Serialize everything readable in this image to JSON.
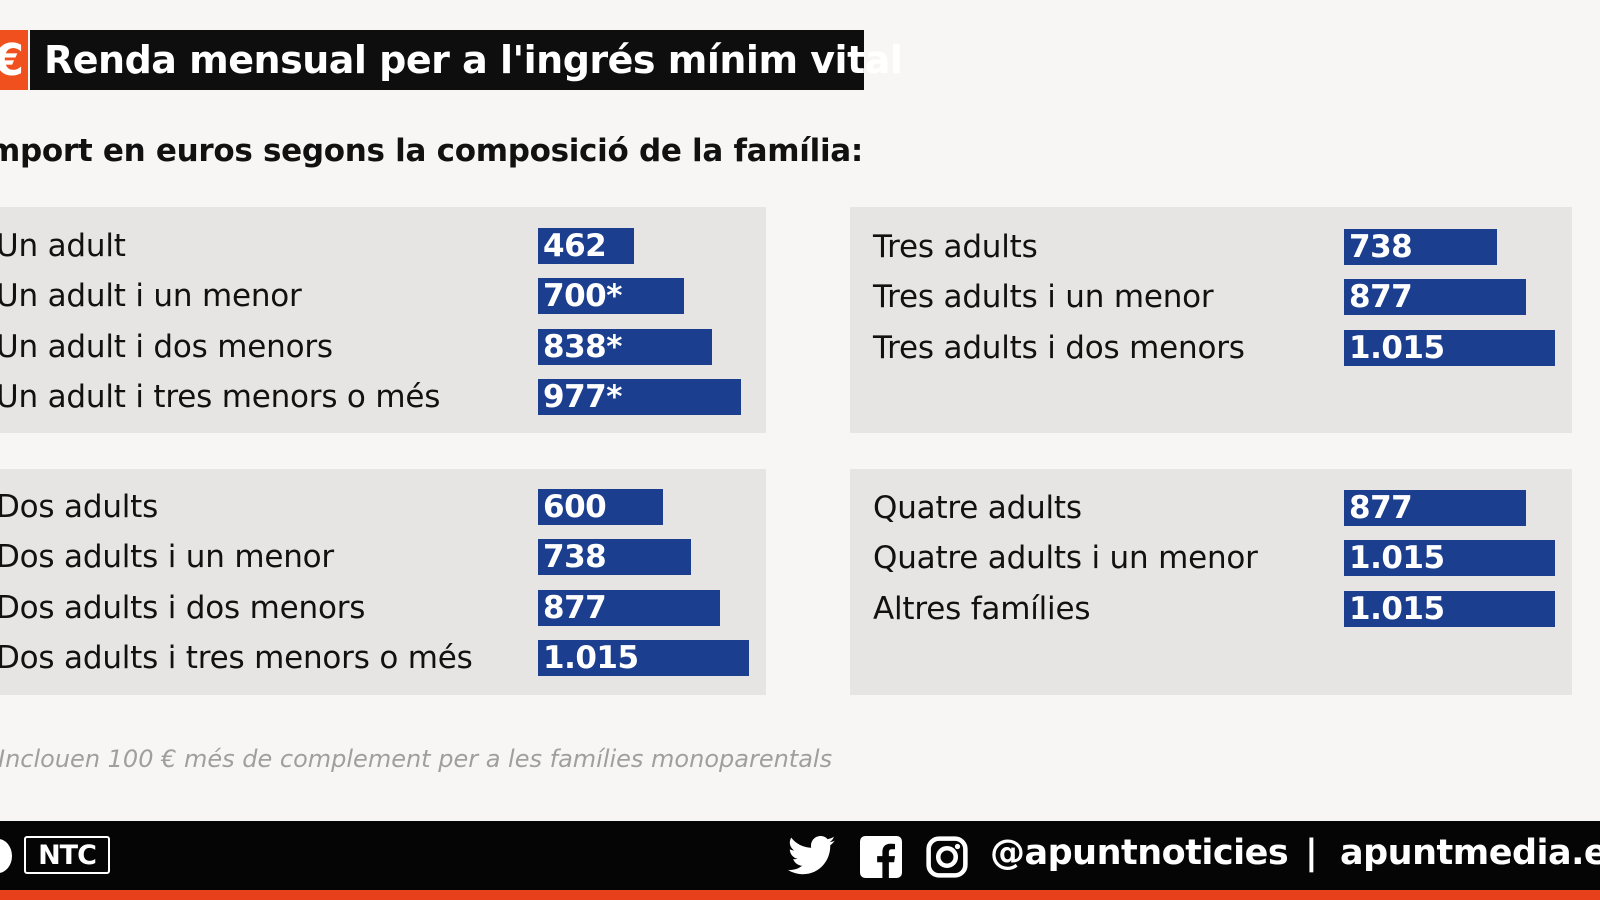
{
  "header": {
    "title": "Renda mensual per a l'ingrés mínim vital",
    "icon": "euro-icon",
    "subtitle": "mport en euros segons la composició de la família:"
  },
  "colors": {
    "bar": "#1c3e8f",
    "panel": "#e6e5e4",
    "accent": "#f0501e",
    "background": "#f8f6f4"
  },
  "chart_data": {
    "type": "bar",
    "orientation": "horizontal",
    "title": "Renda mensual per a l'ingrés mínim vital",
    "subtitle": "mport en euros segons la composició de la família:",
    "xlim": [
      0,
      1015
    ],
    "groups": [
      {
        "categories": [
          "Un adult",
          "Un adult i un menor",
          "Un adult i dos menors",
          "Un adult i tres menors o més"
        ],
        "values": [
          462,
          700,
          838,
          977
        ],
        "labels": [
          "462",
          "700*",
          "838*",
          "977*"
        ]
      },
      {
        "categories": [
          "Tres adults",
          "Tres adults i un menor",
          "Tres adults i dos menors"
        ],
        "values": [
          738,
          877,
          1015
        ],
        "labels": [
          "738",
          "877",
          "1.015"
        ]
      },
      {
        "categories": [
          "Dos adults",
          "Dos adults i un menor",
          "Dos adults i dos menors",
          "Dos adults i tres menors o més"
        ],
        "values": [
          600,
          738,
          877,
          1015
        ],
        "labels": [
          "600",
          "738",
          "877",
          "1.015"
        ]
      },
      {
        "categories": [
          "Quatre adults",
          "Quatre adults i un menor",
          "Altres famílies"
        ],
        "values": [
          877,
          1015,
          1015
        ],
        "labels": [
          "877",
          "1.015",
          "1.015"
        ]
      }
    ]
  },
  "footnote": "Inclouen 100 € més de complement per a les famílies monoparentals",
  "footer": {
    "logo_text": "NTC",
    "icons": [
      "twitter-icon",
      "facebook-icon",
      "instagram-icon"
    ],
    "handle": "@apuntnoticies",
    "separator": "|",
    "site": "apuntmedia.e"
  }
}
